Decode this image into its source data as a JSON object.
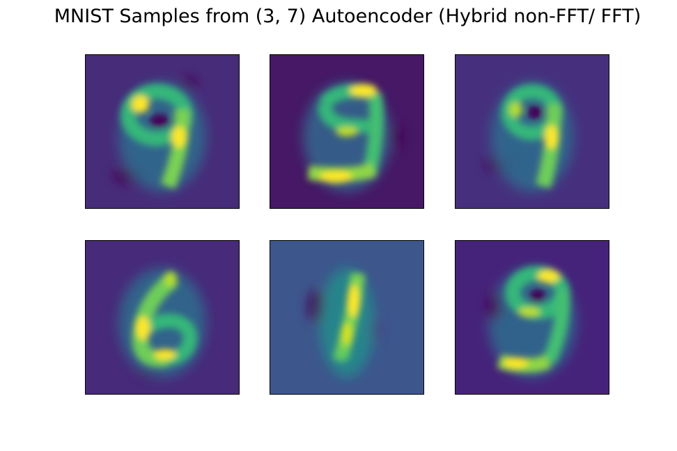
{
  "figure": {
    "title": "MNIST Samples from (3, 7) Autoencoder (Hybrid non-FFT/ FFT)"
  },
  "colormap": "viridis",
  "colors": {
    "deep": "#440154",
    "dark_purple": "#471466",
    "purple": "#482878",
    "indigo": "#3e4a89",
    "slate_blue": "#35608d",
    "teal": "#26828e",
    "green_teal": "#1fa088",
    "green": "#35b779",
    "lime": "#8fd744",
    "yellow": "#fde725"
  },
  "samples": [
    {
      "id": "sample-1",
      "backdrop": "#472c7a",
      "glyph": "9-round"
    },
    {
      "id": "sample-2",
      "backdrop": "#461865",
      "glyph": "9-g"
    },
    {
      "id": "sample-3",
      "backdrop": "#46307e",
      "glyph": "9-g"
    },
    {
      "id": "sample-4",
      "backdrop": "#472a7a",
      "glyph": "6"
    },
    {
      "id": "sample-5",
      "backdrop": "#3d568c",
      "glyph": "1"
    },
    {
      "id": "sample-6",
      "backdrop": "#46237a",
      "glyph": "9-g"
    }
  ]
}
